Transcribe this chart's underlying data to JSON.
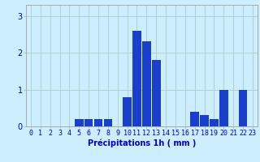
{
  "hours": [
    0,
    1,
    2,
    3,
    4,
    5,
    6,
    7,
    8,
    9,
    10,
    11,
    12,
    13,
    14,
    15,
    16,
    17,
    18,
    19,
    20,
    21,
    22,
    23
  ],
  "values": [
    0,
    0,
    0,
    0,
    0,
    0.2,
    0.2,
    0.2,
    0.2,
    0,
    0.8,
    2.6,
    2.3,
    1.8,
    0,
    0,
    0,
    0.4,
    0.3,
    0.2,
    1.0,
    0,
    1.0,
    0
  ],
  "bar_color": "#1a3fcc",
  "background_color": "#cceeff",
  "grid_color": "#aacccc",
  "xlabel": "Précipitations 1h ( mm )",
  "xlabel_fontsize": 7,
  "ylabel_ticks": [
    0,
    1,
    2,
    3
  ],
  "xlim": [
    -0.5,
    23.5
  ],
  "ylim": [
    0,
    3.3
  ],
  "tick_fontsize": 6,
  "axis_color": "#0000cc",
  "spine_color": "#aaaaaa",
  "fig_width": 3.2,
  "fig_height": 2.0,
  "dpi": 100
}
